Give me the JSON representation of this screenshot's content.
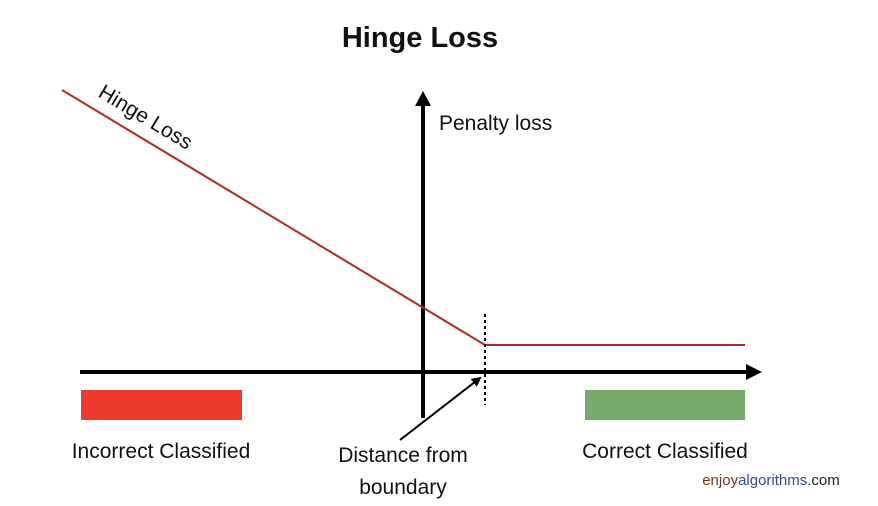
{
  "title": "Hinge Loss",
  "curve_label": "Hinge Loss",
  "y_axis_label": "Penalty loss",
  "left_region": {
    "label": "Incorrect Classified",
    "color": "#ee3a2c"
  },
  "right_region": {
    "label": "Correct Classified",
    "color": "#76a96c"
  },
  "margin_annotation": {
    "line1": "Distance from",
    "line2": "boundary"
  },
  "loss_color": "#b22a22",
  "axis_color": "#000000",
  "brand": {
    "part1": "enjoy",
    "part1_color": "#7a3a1f",
    "part2": "algorithms",
    "part2_color": "#2e4d8a",
    "part3": ".com",
    "part3_color": "#222222"
  }
}
